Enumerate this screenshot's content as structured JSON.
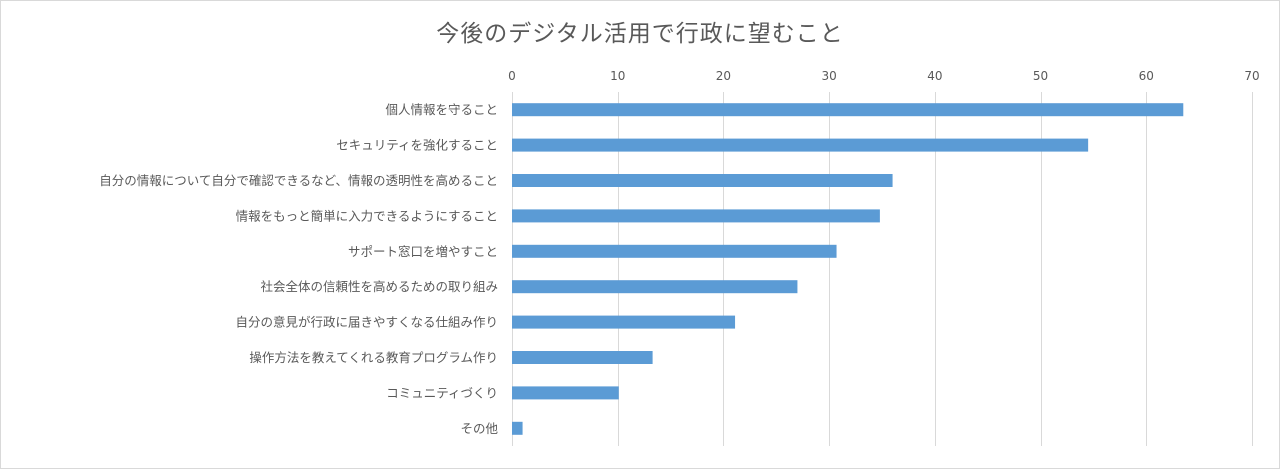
{
  "chart_data": {
    "type": "bar",
    "orientation": "horizontal",
    "title": "今後のデジタル活用で行政に望むこと",
    "xlim": [
      0,
      70
    ],
    "xticks": [
      0,
      10,
      20,
      30,
      40,
      50,
      60,
      70
    ],
    "xaxis_position": "top",
    "grid": true,
    "legend": "none",
    "bar_color": "#5b9bd5",
    "categories": [
      "個人情報を守ること",
      "セキュリティを強化すること",
      "自分の情報について自分で確認できるなど、情報の透明性を高めること",
      "情報をもっと簡単に入力できるようにすること",
      "サポート窓口を増やすこと",
      "社会全体の信頼性を高めるための取り組み",
      "自分の意見が行政に届きやすくなる仕組み作り",
      "操作方法を教えてくれる教育プログラム作り",
      "コミュニティづくり",
      "その他"
    ],
    "values": [
      63.5,
      54.5,
      36.0,
      34.8,
      30.7,
      27.0,
      21.1,
      13.3,
      10.1,
      1.0
    ]
  }
}
